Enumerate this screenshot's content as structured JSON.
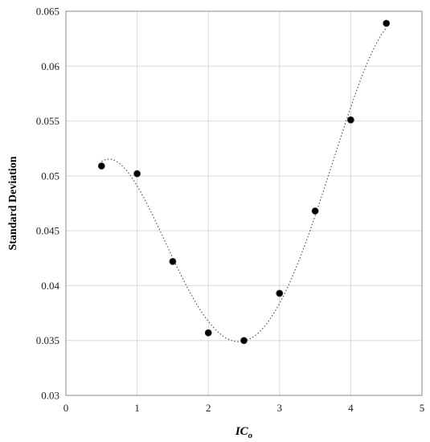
{
  "chart_data": {
    "type": "scatter",
    "title": "",
    "xlabel": "IC",
    "xlabel_subscript": "o",
    "ylabel": "Standard Deviation",
    "xlim": [
      0,
      5
    ],
    "ylim": [
      0.03,
      0.065
    ],
    "x_ticks": [
      "0",
      "1",
      "2",
      "3",
      "4",
      "5"
    ],
    "y_ticks": [
      "0.03",
      "0.035",
      "0.04",
      "0.045",
      "0.05",
      "0.055",
      "0.06",
      "0.065"
    ],
    "grid": true,
    "legend": "none",
    "trendline": "dotted polynomial fit",
    "series": [
      {
        "x": [
          0.5,
          1.0,
          1.5,
          2.0,
          2.5,
          3.0,
          3.5,
          4.0,
          4.5
        ],
        "y": [
          0.0509,
          0.0502,
          0.0422,
          0.0357,
          0.035,
          0.0393,
          0.0468,
          0.0551,
          0.0639
        ]
      }
    ],
    "colors": {
      "marker": "#000000",
      "trendline": "#555555",
      "grid": "#d9d9d9",
      "axis": "#888888"
    }
  }
}
